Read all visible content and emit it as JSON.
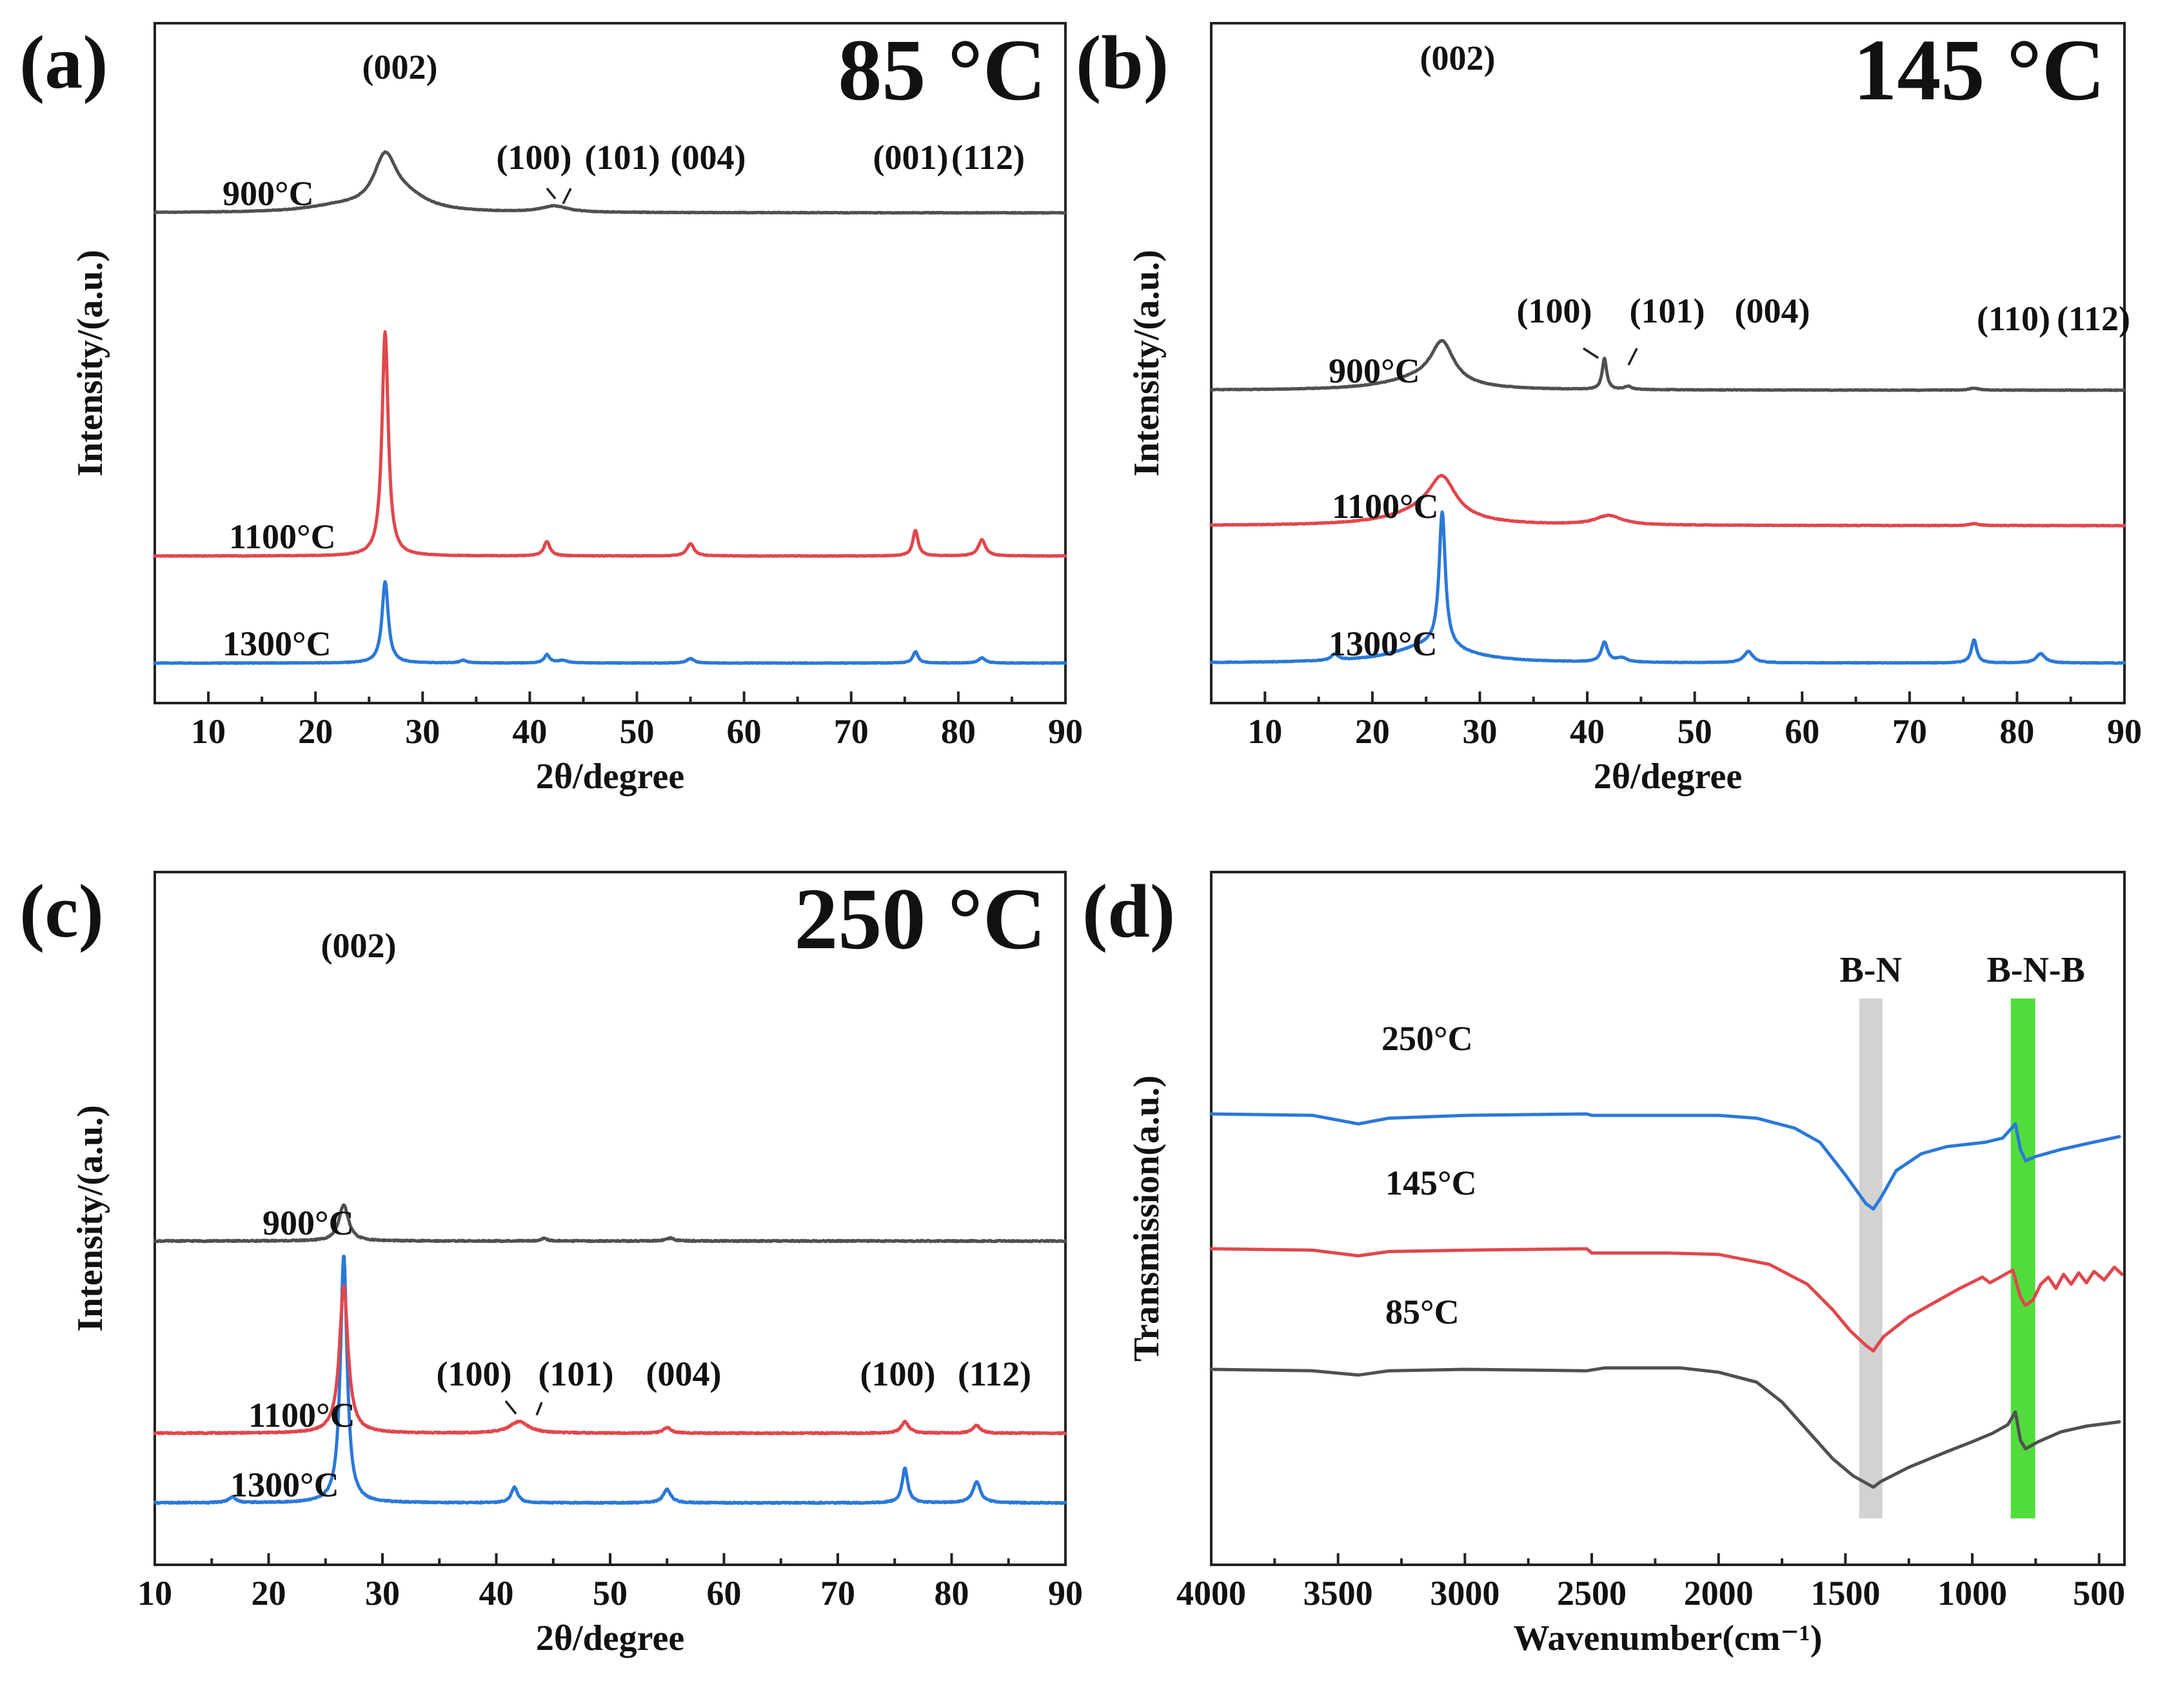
{
  "colors": {
    "1300": "#2a78d8",
    "1100": "#e0474c",
    "900": "#505050",
    "band_bn": "#d2d2d2",
    "band_bnb": "#52dc3c"
  },
  "chart_data": [
    {
      "id": "a",
      "type": "line",
      "panel_label": "(a)",
      "title": "85 °C",
      "xlabel": "2θ/degree",
      "ylabel": "Intensity/(a.u.)",
      "xlim": [
        5,
        90
      ],
      "xticks": [
        10,
        20,
        30,
        40,
        50,
        60,
        70,
        80,
        90
      ],
      "series": [
        {
          "name": "1300°C",
          "color_key": "1300",
          "offset": 2.7,
          "baseline": 0,
          "peaks": [
            [
              26.5,
              1.6,
              0.35
            ],
            [
              33.8,
              0.05,
              0.4
            ],
            [
              41.6,
              0.16,
              0.3
            ],
            [
              43.0,
              0.05,
              0.6
            ],
            [
              55.0,
              0.09,
              0.4
            ],
            [
              76.0,
              0.22,
              0.3
            ],
            [
              82.2,
              0.1,
              0.4
            ]
          ]
        },
        {
          "name": "1100°C",
          "color_key": "1100",
          "offset": 1.15,
          "baseline": 0,
          "peaks": [
            [
              26.5,
              4.4,
              0.35
            ],
            [
              41.6,
              0.28,
              0.35
            ],
            [
              55.0,
              0.24,
              0.4
            ],
            [
              76.0,
              0.5,
              0.3
            ],
            [
              82.2,
              0.32,
              0.4
            ]
          ]
        },
        {
          "name": "900°C",
          "color_key": "900",
          "offset": 0,
          "baseline": 0,
          "peaks": [
            [
              26.5,
              1.0,
              1.3
            ],
            [
              28.5,
              0.25,
              2.5
            ],
            [
              22.0,
              0.1,
              3.5
            ],
            [
              42.3,
              0.12,
              1.5
            ]
          ]
        }
      ],
      "annotations": [
        "(002)",
        "(100)",
        "(101)",
        "(004)",
        "(001)",
        "(112)"
      ]
    },
    {
      "id": "b",
      "type": "line",
      "panel_label": "(b)",
      "title": "145 °C",
      "xlabel": "2θ/degree",
      "ylabel": "Intensity/(a.u.)",
      "xlim": [
        5,
        90
      ],
      "xticks": [
        10,
        20,
        30,
        40,
        50,
        60,
        70,
        80,
        90
      ],
      "series": [
        {
          "name": "1300°C",
          "color_key": "1300",
          "offset": 2.0,
          "baseline": 0,
          "peaks": [
            [
              26.5,
              2.6,
              0.35
            ],
            [
              25.5,
              0.35,
              4.0
            ],
            [
              16.5,
              0.12,
              0.4
            ],
            [
              41.6,
              0.38,
              0.35
            ],
            [
              43.2,
              0.08,
              0.6
            ],
            [
              55.0,
              0.22,
              0.5
            ],
            [
              76.0,
              0.45,
              0.3
            ],
            [
              82.2,
              0.18,
              0.5
            ]
          ]
        },
        {
          "name": "1100°C",
          "color_key": "1100",
          "offset": 1.0,
          "baseline": 0,
          "peaks": [
            [
              26.5,
              0.75,
              1.5
            ],
            [
              25.0,
              0.25,
              4.0
            ],
            [
              42.0,
              0.18,
              1.5
            ],
            [
              76.0,
              0.04,
              0.5
            ]
          ]
        },
        {
          "name": "900°C",
          "color_key": "900",
          "offset": 0,
          "baseline": 0,
          "peaks": [
            [
              26.5,
              0.8,
              1.3
            ],
            [
              24.5,
              0.2,
              4.0
            ],
            [
              41.6,
              0.6,
              0.25
            ],
            [
              43.8,
              0.06,
              0.4
            ],
            [
              76.0,
              0.04,
              0.5
            ]
          ]
        }
      ],
      "annotations": [
        "(002)",
        "(100)",
        "(101)",
        "(004)",
        "(110)",
        "(112)"
      ]
    },
    {
      "id": "c",
      "type": "line",
      "panel_label": "(c)",
      "title": "250 °C",
      "xlabel": "2θ/degree",
      "ylabel": "Intensity/(a.u.)",
      "xlim": [
        10,
        90
      ],
      "xticks": [
        10,
        20,
        30,
        40,
        50,
        60,
        70,
        80,
        90
      ],
      "series": [
        {
          "name": "1300°C",
          "color_key": "1300",
          "offset": 1.6,
          "baseline": 0,
          "peaks": [
            [
              26.6,
              2.6,
              0.35
            ],
            [
              16.8,
              0.06,
              0.4
            ],
            [
              41.6,
              0.16,
              0.35
            ],
            [
              55.0,
              0.14,
              0.4
            ],
            [
              75.9,
              0.36,
              0.3
            ],
            [
              82.2,
              0.22,
              0.4
            ]
          ]
        },
        {
          "name": "1100°C",
          "color_key": "1100",
          "offset": 0.45,
          "baseline": 0,
          "peaks": [
            [
              26.6,
              1.55,
              0.45
            ],
            [
              42.0,
              0.12,
              1.0
            ],
            [
              55.0,
              0.06,
              0.4
            ],
            [
              75.9,
              0.12,
              0.4
            ],
            [
              82.2,
              0.08,
              0.4
            ]
          ]
        },
        {
          "name": "900°C",
          "color_key": "900",
          "offset": 0,
          "baseline": 0,
          "peaks": [
            [
              26.6,
              0.38,
              0.5
            ],
            [
              44.2,
              0.03,
              0.3
            ],
            [
              55.3,
              0.03,
              0.4
            ]
          ]
        }
      ],
      "annotations": [
        "(002)",
        "(100)",
        "(101)",
        "(004)",
        "(100)",
        "(112)"
      ]
    },
    {
      "id": "d",
      "type": "line",
      "panel_label": "(d)",
      "xlabel": "Wavenumber(cm⁻¹)",
      "ylabel": "Transmission(a.u.)",
      "xlim": [
        4000,
        400
      ],
      "xticks": [
        4000,
        3500,
        3000,
        2500,
        2000,
        1500,
        1000,
        500
      ],
      "series": [
        {
          "name": "250°C",
          "color_key": "1300",
          "points": [
            [
              4000,
              3.15
            ],
            [
              3600,
              3.14
            ],
            [
              3420,
              3.08
            ],
            [
              3300,
              3.12
            ],
            [
              3000,
              3.14
            ],
            [
              2520,
              3.15
            ],
            [
              2500,
              3.14
            ],
            [
              2000,
              3.14
            ],
            [
              1850,
              3.12
            ],
            [
              1700,
              3.05
            ],
            [
              1600,
              2.95
            ],
            [
              1500,
              2.72
            ],
            [
              1420,
              2.52
            ],
            [
              1390,
              2.48
            ],
            [
              1360,
              2.56
            ],
            [
              1300,
              2.75
            ],
            [
              1200,
              2.87
            ],
            [
              1100,
              2.92
            ],
            [
              950,
              2.95
            ],
            [
              880,
              2.98
            ],
            [
              830,
              3.08
            ],
            [
              810,
              2.9
            ],
            [
              790,
              2.82
            ],
            [
              750,
              2.85
            ],
            [
              650,
              2.9
            ],
            [
              550,
              2.94
            ],
            [
              420,
              2.99
            ]
          ]
        },
        {
          "name": "145°C",
          "color_key": "1100",
          "points": [
            [
              4000,
              2.2
            ],
            [
              3600,
              2.19
            ],
            [
              3420,
              2.15
            ],
            [
              3300,
              2.18
            ],
            [
              3000,
              2.19
            ],
            [
              2520,
              2.2
            ],
            [
              2500,
              2.17
            ],
            [
              2200,
              2.17
            ],
            [
              2000,
              2.16
            ],
            [
              1800,
              2.09
            ],
            [
              1650,
              1.95
            ],
            [
              1550,
              1.77
            ],
            [
              1480,
              1.62
            ],
            [
              1420,
              1.52
            ],
            [
              1390,
              1.48
            ],
            [
              1350,
              1.58
            ],
            [
              1250,
              1.72
            ],
            [
              1150,
              1.82
            ],
            [
              1050,
              1.92
            ],
            [
              960,
              2.0
            ],
            [
              930,
              1.96
            ],
            [
              880,
              2.01
            ],
            [
              840,
              2.05
            ],
            [
              810,
              1.86
            ],
            [
              790,
              1.8
            ],
            [
              760,
              1.84
            ],
            [
              730,
              1.95
            ],
            [
              700,
              2.0
            ],
            [
              670,
              1.92
            ],
            [
              640,
              2.02
            ],
            [
              610,
              1.95
            ],
            [
              580,
              2.03
            ],
            [
              550,
              1.96
            ],
            [
              520,
              2.04
            ],
            [
              480,
              1.98
            ],
            [
              440,
              2.07
            ],
            [
              410,
              2.02
            ]
          ]
        },
        {
          "name": "85°C",
          "color_key": "900",
          "points": [
            [
              4000,
              1.35
            ],
            [
              3600,
              1.34
            ],
            [
              3420,
              1.31
            ],
            [
              3300,
              1.34
            ],
            [
              3000,
              1.35
            ],
            [
              2520,
              1.34
            ],
            [
              2450,
              1.36
            ],
            [
              2150,
              1.36
            ],
            [
              2000,
              1.33
            ],
            [
              1850,
              1.26
            ],
            [
              1750,
              1.12
            ],
            [
              1650,
              0.92
            ],
            [
              1550,
              0.72
            ],
            [
              1470,
              0.6
            ],
            [
              1420,
              0.55
            ],
            [
              1390,
              0.52
            ],
            [
              1360,
              0.56
            ],
            [
              1250,
              0.66
            ],
            [
              1100,
              0.77
            ],
            [
              1000,
              0.84
            ],
            [
              920,
              0.9
            ],
            [
              860,
              0.96
            ],
            [
              830,
              1.05
            ],
            [
              810,
              0.85
            ],
            [
              790,
              0.79
            ],
            [
              740,
              0.84
            ],
            [
              650,
              0.91
            ],
            [
              550,
              0.95
            ],
            [
              420,
              0.98
            ]
          ]
        }
      ],
      "bands": [
        {
          "label": "B-N",
          "center": 1400
        },
        {
          "label": "B-N-B",
          "center": 800
        }
      ]
    }
  ]
}
